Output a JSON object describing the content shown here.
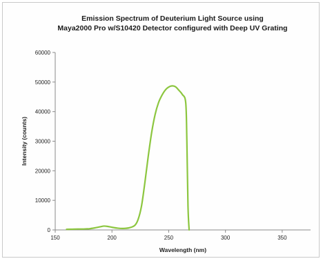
{
  "chart_data": {
    "type": "line",
    "title_lines": [
      "Emission Spectrum of Deuterium Light Source using",
      "Maya2000 Pro w/S10420 Detector configured with Deep UV Grating"
    ],
    "xlabel": "Wavelength (nm)",
    "ylabel": "Intensity (counts)",
    "xlim": [
      150,
      375
    ],
    "ylim": [
      0,
      60000
    ],
    "xticks": [
      150,
      200,
      250,
      300,
      350
    ],
    "yticks": [
      0,
      10000,
      20000,
      30000,
      40000,
      50000,
      60000
    ],
    "grid": false,
    "legend": "none",
    "line_color": "#8cc63f",
    "series": [
      {
        "x": [
          160,
          165,
          170,
          175,
          180,
          185,
          190,
          193,
          196,
          200,
          205,
          210,
          215,
          220,
          223,
          226,
          229,
          232,
          235,
          238,
          241,
          244,
          247,
          250,
          253,
          256,
          259,
          262,
          265,
          266,
          267,
          268
        ],
        "y": [
          200,
          250,
          300,
          300,
          400,
          700,
          1100,
          1300,
          1200,
          900,
          600,
          500,
          700,
          1500,
          3500,
          8000,
          16000,
          25000,
          33000,
          39000,
          43000,
          45500,
          47300,
          48300,
          48700,
          48400,
          47200,
          45800,
          43000,
          30000,
          8000,
          0
        ]
      }
    ]
  }
}
